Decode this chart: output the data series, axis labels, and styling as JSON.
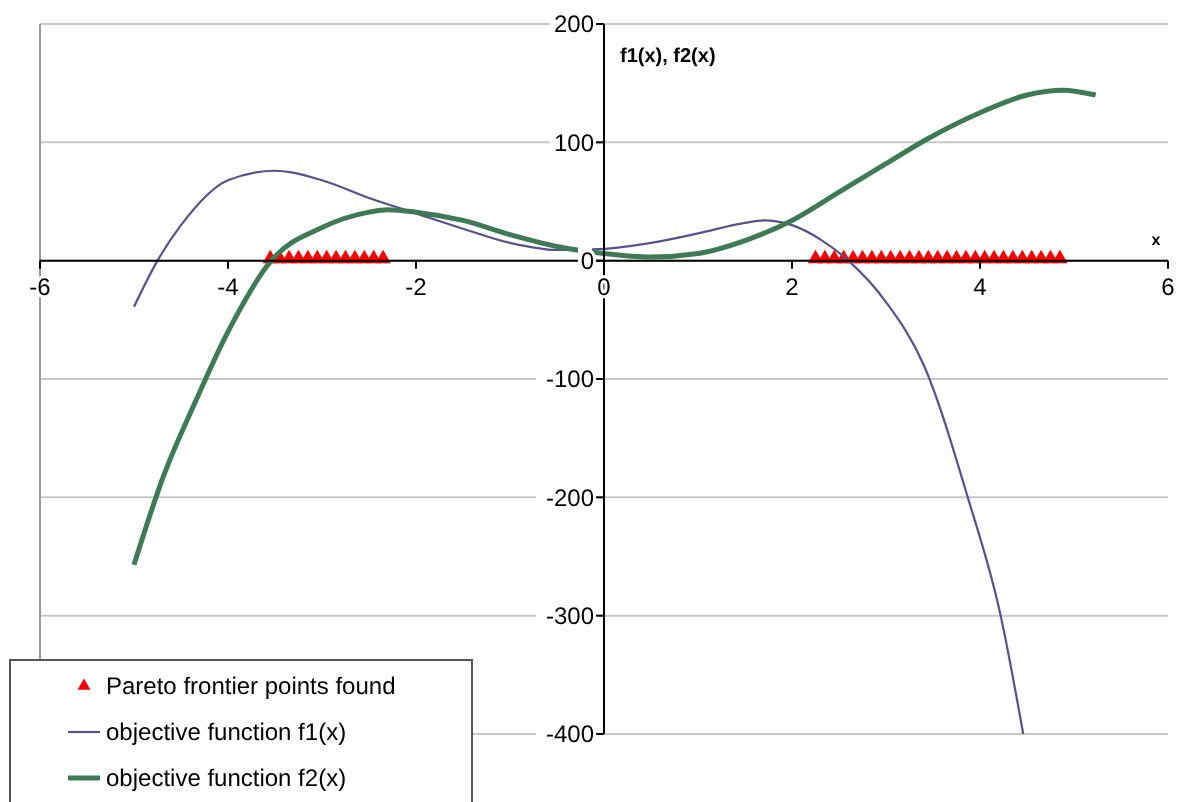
{
  "chart_data": {
    "type": "line",
    "xlabel": "x",
    "ylabel": "f1(x), f2(x)",
    "xlim": [
      -6,
      6
    ],
    "ylim": [
      -400,
      200
    ],
    "xticks": [
      -6,
      -4,
      -2,
      0,
      2,
      4,
      6
    ],
    "yticks": [
      200,
      100,
      0,
      -100,
      -200,
      -300,
      -400
    ],
    "grid": "y",
    "legend": "bottom left",
    "series": [
      {
        "name": "Pareto frontier points found",
        "type": "scatter",
        "marker": "triangle",
        "color": "#ff0000",
        "x": [
          -3.55,
          -3.45,
          -3.35,
          -3.25,
          -3.15,
          -3.05,
          -2.95,
          -2.85,
          -2.75,
          -2.65,
          -2.55,
          -2.45,
          -2.35,
          2.25,
          2.35,
          2.45,
          2.55,
          2.65,
          2.75,
          2.85,
          2.95,
          3.05,
          3.15,
          3.25,
          3.35,
          3.45,
          3.55,
          3.65,
          3.75,
          3.85,
          3.95,
          4.05,
          4.15,
          4.25,
          4.35,
          4.45,
          4.55,
          4.65,
          4.75,
          4.85
        ],
        "values": [
          0,
          0,
          0,
          0,
          0,
          0,
          0,
          0,
          0,
          0,
          0,
          0,
          0,
          0,
          0,
          0,
          0,
          0,
          0,
          0,
          0,
          0,
          0,
          0,
          0,
          0,
          0,
          0,
          0,
          0,
          0,
          0,
          0,
          0,
          0,
          0,
          0,
          0,
          0,
          0
        ]
      },
      {
        "name": "objective function f1(x)",
        "type": "line",
        "marker": "none",
        "color": "#56528f",
        "x": [
          -5,
          -4.75,
          -4.5,
          -4,
          -3.5,
          -3,
          -2.5,
          -2,
          -1.5,
          -1,
          -0.5,
          0,
          0.5,
          1,
          1.5,
          1.7,
          2,
          2.3,
          2.6,
          3,
          3.4,
          3.87,
          4.22,
          4.46
        ],
        "values": [
          -39,
          0,
          30,
          68,
          76,
          68,
          53,
          40,
          27,
          15,
          9,
          10,
          15,
          23,
          32,
          34,
          30,
          18,
          0,
          -35,
          -88,
          -200,
          -300,
          -400
        ]
      },
      {
        "name": "objective function f2(x)",
        "type": "line",
        "marker": "none",
        "color": "#3f7a57",
        "x": [
          -5,
          -4.7,
          -4.34,
          -4,
          -3.54,
          -3,
          -2.5,
          -2.3,
          -2,
          -1.5,
          -1,
          -0.5,
          0,
          0.5,
          1,
          1.5,
          2,
          2.5,
          3,
          3.42,
          4,
          4.5,
          4.88,
          5.23
        ],
        "values": [
          -257,
          -185,
          -118,
          -60,
          0,
          28,
          41,
          43,
          41,
          34,
          22,
          12,
          6,
          3,
          6,
          17,
          34,
          58,
          82,
          102,
          125,
          140,
          144,
          140
        ]
      }
    ]
  }
}
